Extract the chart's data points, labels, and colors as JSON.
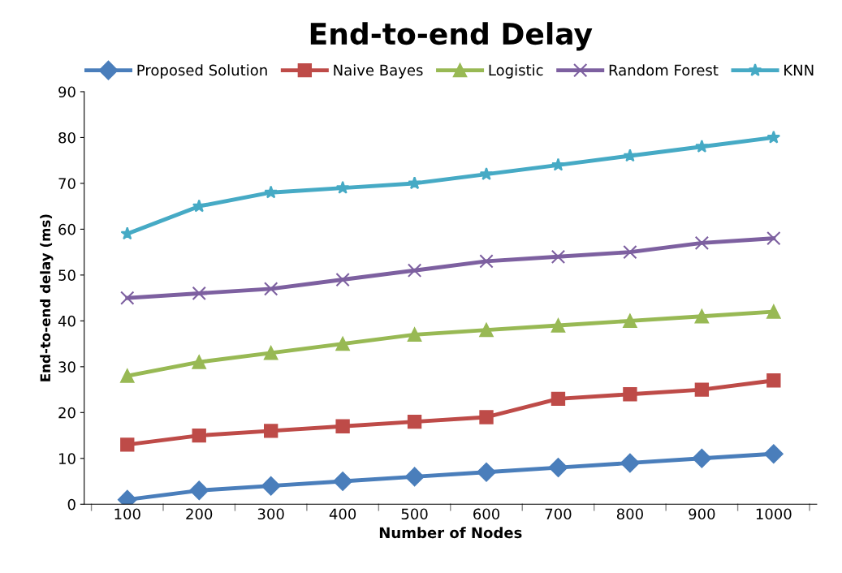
{
  "chart_data": {
    "type": "line",
    "title": "End-to-end Delay",
    "xlabel": "Number of Nodes",
    "ylabel": "End-to-end delay (ms)",
    "categories": [
      "100",
      "200",
      "300",
      "400",
      "500",
      "600",
      "700",
      "800",
      "900",
      "1000"
    ],
    "ylim": [
      0,
      90
    ],
    "yticks": [
      0,
      10,
      20,
      30,
      40,
      50,
      60,
      70,
      80,
      90
    ],
    "grid": false,
    "legend": "top",
    "series": [
      {
        "name": "Proposed Solution",
        "color": "#4a7ebb",
        "marker": "diamond",
        "values": [
          1,
          3,
          4,
          5,
          6,
          7,
          8,
          9,
          10,
          11
        ]
      },
      {
        "name": "Naive Bayes",
        "color": "#be4b48",
        "marker": "square",
        "values": [
          13,
          15,
          16,
          17,
          18,
          19,
          23,
          24,
          25,
          27
        ]
      },
      {
        "name": "Logistic",
        "color": "#98b954",
        "marker": "triangle",
        "values": [
          28,
          31,
          33,
          35,
          37,
          38,
          39,
          40,
          41,
          42
        ]
      },
      {
        "name": "Random Forest",
        "color": "#7d60a0",
        "marker": "cross",
        "values": [
          45,
          46,
          47,
          49,
          51,
          53,
          54,
          55,
          57,
          58
        ]
      },
      {
        "name": "KNN",
        "color": "#46aac5",
        "marker": "star",
        "values": [
          59,
          65,
          68,
          69,
          70,
          72,
          74,
          76,
          78,
          80
        ]
      }
    ]
  }
}
